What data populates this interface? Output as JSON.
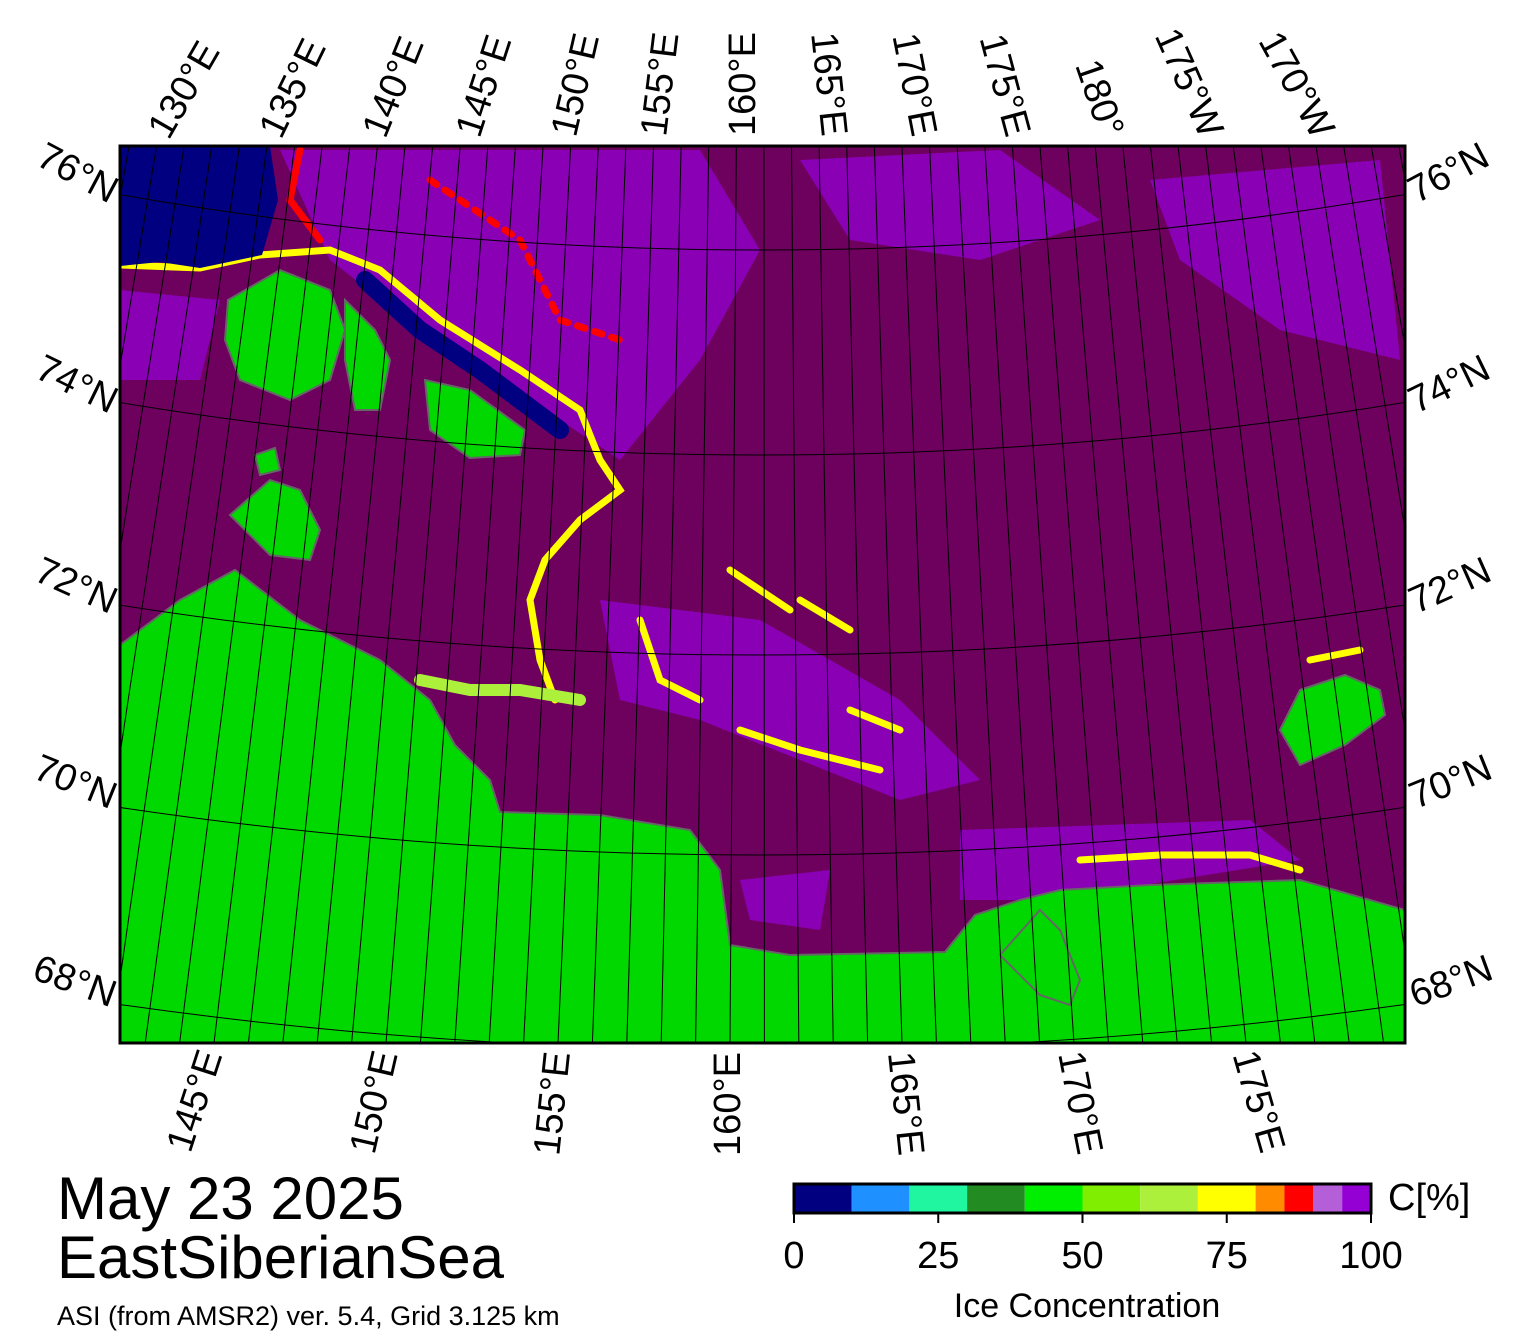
{
  "map": {
    "date": "May 23 2025",
    "region": "EastSiberianSea",
    "source": "ASI (from AMSR2) ver. 5.4,  Grid 3.125 km",
    "top_lon_labels": [
      "130°E",
      "135°E",
      "140°E",
      "145°E",
      "150°E",
      "155°E",
      "160°E",
      "165°E",
      "170°E",
      "175°E",
      "180°",
      "175°W",
      "170°W"
    ],
    "left_lat_labels": [
      "76°N",
      "74°N",
      "72°N",
      "70°N",
      "68°N"
    ],
    "right_lat_labels": [
      "76°N",
      "74°N",
      "72°N",
      "70°N",
      "68°N"
    ],
    "bottom_lon_labels": [
      "145°E",
      "150°E",
      "155°E",
      "160°E",
      "165°E",
      "170°E",
      "175°E"
    ]
  },
  "colorbar": {
    "title": "Ice Concentration",
    "unit": "C[%]",
    "range": [
      0,
      100
    ],
    "ticks": [
      0,
      25,
      50,
      75,
      100
    ],
    "bounds": [
      0,
      10,
      20,
      30,
      40,
      50,
      60,
      70,
      80,
      85,
      90,
      95,
      100
    ],
    "colors": [
      "#000080",
      "#1e90ff",
      "#20f5a0",
      "#228b22",
      "#00ee00",
      "#7fee00",
      "#adf03c",
      "#ffff00",
      "#ff8c00",
      "#ff0000",
      "#b45fd8",
      "#9400d3"
    ]
  }
}
